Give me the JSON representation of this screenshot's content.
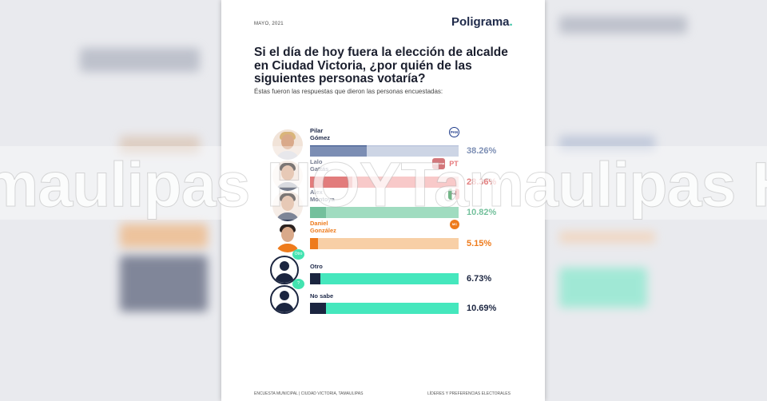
{
  "header": {
    "date": "MAYO, 2021",
    "brand": "Poligrama",
    "brand_dot": "."
  },
  "title": "Si el día de hoy fuera la elección de alcalde en Ciudad Victoria, ¿por quién de las siguientes personas votaría?",
  "subtitle": "Éstas fueron las respuestas que dieron las personas encuestadas:",
  "chart_data": {
    "type": "bar",
    "orientation": "horizontal",
    "title": "Si el día de hoy fuera la elección de alcalde en Ciudad Victoria, ¿por quién de las siguientes personas votaría?",
    "categories": [
      "Pilar Gómez",
      "Lalo Gattás",
      "Alex Montoya",
      "Daniel González",
      "Otro",
      "No sabe"
    ],
    "values": [
      38.26,
      28.36,
      10.82,
      5.15,
      6.73,
      10.69
    ],
    "labels": [
      "38.26%",
      "28.36%",
      "10.82%",
      "5.15%",
      "6.73%",
      "10.69%"
    ],
    "unit": "%"
  },
  "candidates": [
    {
      "name_line1": "Pilar",
      "name_line2": "Gómez",
      "pct": "38.26%",
      "value": 38.26,
      "color": "#2d4a86",
      "track": "#aebbd6",
      "parties": [
        "PAN"
      ]
    },
    {
      "name_line1": "Lalo",
      "name_line2": "Gattás",
      "pct": "28.36%",
      "value": 28.36,
      "color": "#d12c2c",
      "track": "#f4a9a9",
      "parties": [
        "morena",
        "PT"
      ]
    },
    {
      "name_line1": "Alex",
      "name_line2": "Montoya",
      "pct": "10.82%",
      "value": 10.82,
      "color": "#1e9a5f",
      "track": "#67c79a",
      "parties": [
        "PRI"
      ]
    },
    {
      "name_line1": "Daniel",
      "name_line2": "González",
      "pct": "5.15%",
      "value": 5.15,
      "color": "#ee7b1c",
      "track": "#f8cfa6",
      "parties": [
        "MC"
      ]
    },
    {
      "name_line1": "Otro",
      "name_line2": "",
      "pct": "6.73%",
      "value": 6.73,
      "color": "#1b2540",
      "track": "#45e7bd",
      "bubble": "Otro"
    },
    {
      "name_line1": "No sabe",
      "name_line2": "",
      "pct": "10.69%",
      "value": 10.69,
      "color": "#1b2540",
      "track": "#45e7bd",
      "bubble": "?"
    }
  ],
  "footer": {
    "left": "ENCUESTA MUNICIPAL | CIUDAD VICTORIA, TAMAULIPAS",
    "right": "LÍDERES Y PREFERENCIAS ELECTORALES"
  },
  "watermark": "maulipas HOYTamaulipas HOYTama"
}
